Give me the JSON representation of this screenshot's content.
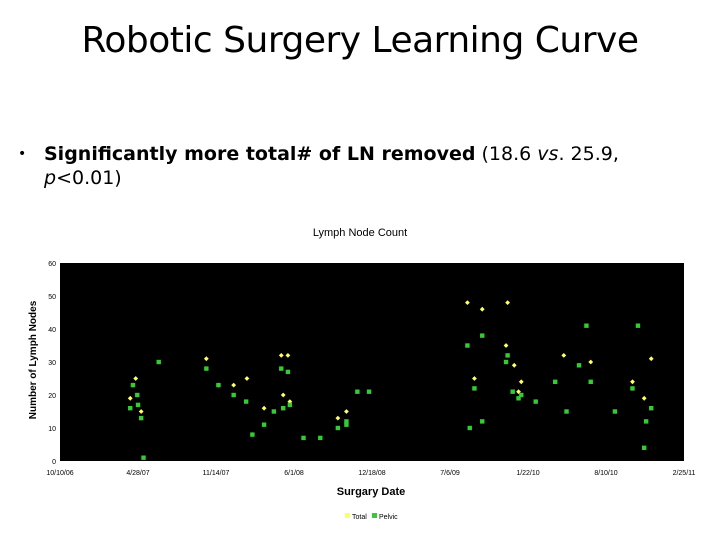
{
  "slide": {
    "title": "Robotic Surgery Learning Curve",
    "bullet": {
      "bold": "Significantly more total# of LN removed",
      "plain1": " (18.6 ",
      "italic1": "vs",
      "plain2": ". 25.9,",
      "italic2": "p",
      "plain3": "<0.01)"
    }
  },
  "colors": {
    "total": "#ffff66",
    "pelvic": "#33cc33",
    "plot_bg": "#000000"
  },
  "chart_data": {
    "type": "scatter",
    "title": "Lymph Node Count",
    "xlabel": "Surgary Date",
    "ylabel": "Number of Lymph Nodes",
    "ylim": [
      0,
      60
    ],
    "yticks": [
      "0",
      "10",
      "20",
      "30",
      "40",
      "50",
      "60"
    ],
    "xlim": [
      "2006-10-10",
      "2011-02-25"
    ],
    "xticks": [
      "10/10/06",
      "4/28/07",
      "11/14/07",
      "6/1/08",
      "12/18/08",
      "7/6/09",
      "1/22/10",
      "8/10/10",
      "2/25/11"
    ],
    "grid": false,
    "legend": "bottom",
    "series": [
      {
        "name": "Total",
        "points": [
          [
            "2007-04-08",
            19
          ],
          [
            "2007-04-15",
            23
          ],
          [
            "2007-04-22",
            25
          ],
          [
            "2007-05-06",
            15
          ],
          [
            "2007-10-20",
            31
          ],
          [
            "2007-11-20",
            23
          ],
          [
            "2007-12-29",
            23
          ],
          [
            "2008-02-01",
            25
          ],
          [
            "2008-03-16",
            16
          ],
          [
            "2008-04-29",
            32
          ],
          [
            "2008-05-04",
            20
          ],
          [
            "2008-05-16",
            32
          ],
          [
            "2008-05-21",
            18
          ],
          [
            "2008-09-21",
            13
          ],
          [
            "2008-10-13",
            15
          ],
          [
            "2009-08-19",
            48
          ],
          [
            "2009-09-06",
            25
          ],
          [
            "2009-09-26",
            46
          ],
          [
            "2009-11-26",
            35
          ],
          [
            "2009-12-17",
            29
          ],
          [
            "2009-12-28",
            21
          ],
          [
            "2010-01-04",
            24
          ],
          [
            "2009-11-30",
            48
          ],
          [
            "2010-04-23",
            32
          ],
          [
            "2010-07-01",
            30
          ],
          [
            "2010-10-16",
            24
          ],
          [
            "2010-11-15",
            19
          ],
          [
            "2010-12-03",
            31
          ]
        ]
      },
      {
        "name": "Pelvic",
        "points": [
          [
            "2007-04-08",
            16
          ],
          [
            "2007-04-15",
            23
          ],
          [
            "2007-04-26",
            20
          ],
          [
            "2007-04-28",
            17
          ],
          [
            "2007-05-06",
            13
          ],
          [
            "2007-05-12",
            1
          ],
          [
            "2007-06-20",
            30
          ],
          [
            "2007-10-20",
            28
          ],
          [
            "2007-11-20",
            23
          ],
          [
            "2007-12-29",
            20
          ],
          [
            "2008-01-30",
            18
          ],
          [
            "2008-02-15",
            8
          ],
          [
            "2008-03-16",
            11
          ],
          [
            "2008-04-10",
            15
          ],
          [
            "2008-04-29",
            28
          ],
          [
            "2008-05-04",
            16
          ],
          [
            "2008-05-16",
            27
          ],
          [
            "2008-05-21",
            17
          ],
          [
            "2008-06-25",
            7
          ],
          [
            "2008-08-07",
            7
          ],
          [
            "2008-09-21",
            10
          ],
          [
            "2008-10-13",
            11
          ],
          [
            "2008-10-13",
            12
          ],
          [
            "2008-11-10",
            21
          ],
          [
            "2008-12-10",
            21
          ],
          [
            "2009-08-19",
            35
          ],
          [
            "2009-08-25",
            10
          ],
          [
            "2009-09-06",
            22
          ],
          [
            "2009-09-26",
            38
          ],
          [
            "2009-09-26",
            12
          ],
          [
            "2009-11-26",
            30
          ],
          [
            "2009-11-30",
            32
          ],
          [
            "2009-12-13",
            21
          ],
          [
            "2009-12-28",
            19
          ],
          [
            "2010-01-04",
            20
          ],
          [
            "2010-02-10",
            18
          ],
          [
            "2010-04-01",
            24
          ],
          [
            "2010-04-30",
            15
          ],
          [
            "2010-06-01",
            29
          ],
          [
            "2010-06-20",
            41
          ],
          [
            "2010-07-01",
            24
          ],
          [
            "2010-09-01",
            15
          ],
          [
            "2010-10-16",
            22
          ],
          [
            "2010-10-30",
            41
          ],
          [
            "2010-11-15",
            4
          ],
          [
            "2010-11-20",
            12
          ],
          [
            "2010-12-03",
            16
          ]
        ]
      }
    ]
  }
}
